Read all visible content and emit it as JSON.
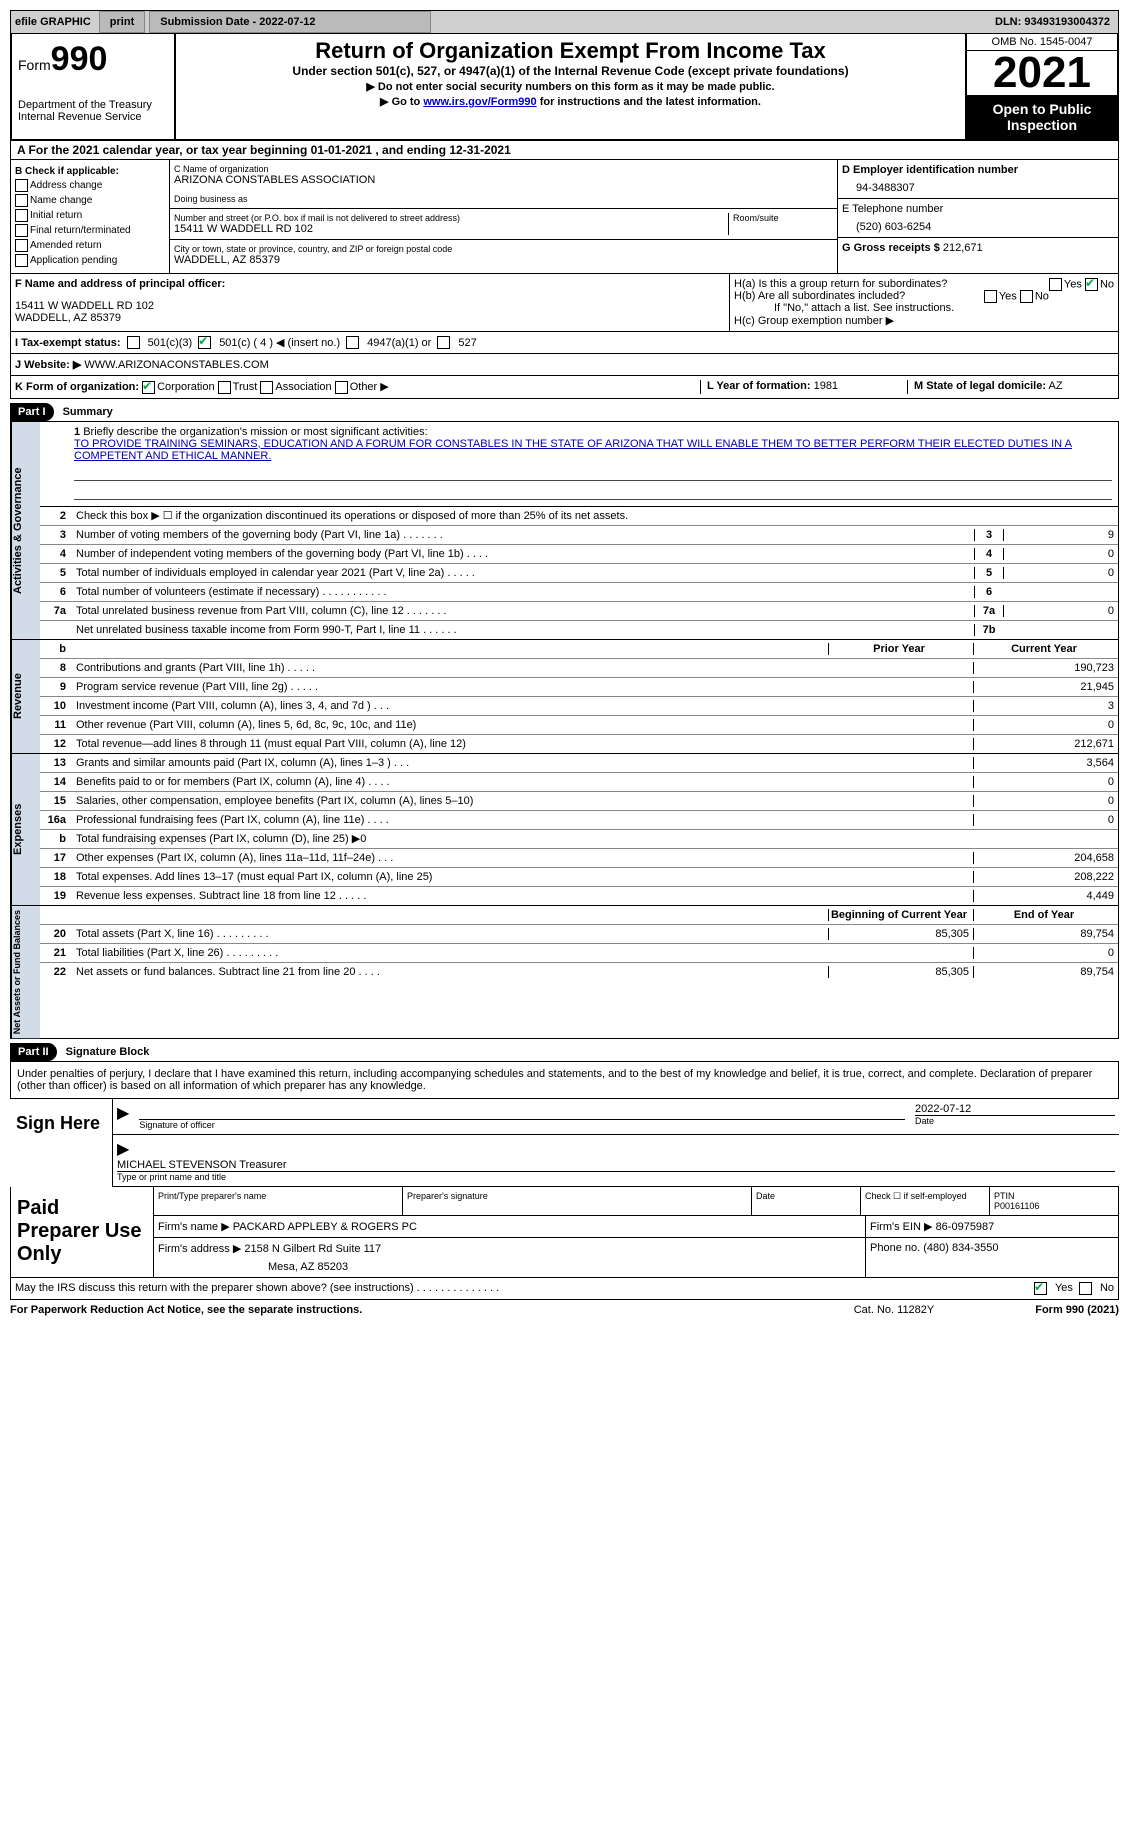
{
  "topbar": {
    "efile": "efile GRAPHIC",
    "print_btn": "print",
    "sub_label": "Submission Date - 2022-07-12",
    "dln": "DLN: 93493193004372"
  },
  "header": {
    "form_word": "Form",
    "form_num": "990",
    "dept": "Department of the Treasury Internal Revenue Service",
    "title": "Return of Organization Exempt From Income Tax",
    "sub": "Under section 501(c), 527, or 4947(a)(1) of the Internal Revenue Code (except private foundations)",
    "note1": "▶ Do not enter social security numbers on this form as it may be made public.",
    "note2a": "▶ Go to ",
    "note2link": "www.irs.gov/Form990",
    "note2b": " for instructions and the latest information.",
    "omb": "OMB No. 1545-0047",
    "year": "2021",
    "open": "Open to Public Inspection"
  },
  "row_a": "A For the 2021 calendar year, or tax year beginning 01-01-2021   , and ending 12-31-2021",
  "b": {
    "label": "B Check if applicable:",
    "items": [
      "Address change",
      "Name change",
      "Initial return",
      "Final return/terminated",
      "Amended return",
      "Application pending"
    ]
  },
  "c": {
    "label": "C Name of organization",
    "name": "ARIZONA CONSTABLES ASSOCIATION",
    "dba_label": "Doing business as",
    "street_label": "Number and street (or P.O. box if mail is not delivered to street address)",
    "street": "15411 W WADDELL RD 102",
    "room_label": "Room/suite",
    "city_label": "City or town, state or province, country, and ZIP or foreign postal code",
    "city": "WADDELL, AZ  85379"
  },
  "d": {
    "ein_label": "D Employer identification number",
    "ein": "94-3488307",
    "tel_label": "E Telephone number",
    "tel": "(520) 603-6254",
    "receipts_label": "G Gross receipts $",
    "receipts": "212,671"
  },
  "f": {
    "label": "F  Name and address of principal officer:",
    "addr1": "15411 W WADDELL RD 102",
    "addr2": "WADDELL, AZ  85379"
  },
  "h": {
    "ha": "H(a)  Is this a group return for subordinates?",
    "hb": "H(b)  Are all subordinates included?",
    "note": "If \"No,\" attach a list. See instructions.",
    "hc": "H(c)  Group exemption number ▶",
    "yes": "Yes",
    "no": "No"
  },
  "i_label": "I   Tax-exempt status:",
  "i_opts": [
    "501(c)(3)",
    "501(c) ( 4 ) ◀ (insert no.)",
    "4947(a)(1) or",
    "527"
  ],
  "j": {
    "label": "J   Website: ▶",
    "val": "WWW.ARIZONACONSTABLES.COM"
  },
  "k": {
    "label": "K Form of organization:",
    "opts": [
      "Corporation",
      "Trust",
      "Association",
      "Other ▶"
    ]
  },
  "l": {
    "label": "L Year of formation:",
    "val": "1981"
  },
  "m": {
    "label": "M State of legal domicile:",
    "val": "AZ"
  },
  "part1": {
    "tag": "Part I",
    "title": "Summary"
  },
  "summary": {
    "side1": "Activities & Governance",
    "side2": "Revenue",
    "side3": "Expenses",
    "side4": "Net Assets or Fund Balances",
    "l1": "Briefly describe the organization's mission or most significant activities:",
    "mission": "TO PROVIDE TRAINING SEMINARS, EDUCATION AND A FORUM FOR CONSTABLES IN THE STATE OF ARIZONA THAT WILL ENABLE THEM TO BETTER PERFORM THEIR ELECTED DUTIES IN A COMPETENT AND ETHICAL MANNER.",
    "l2": "Check this box ▶ ☐  if the organization discontinued its operations or disposed of more than 25% of its net assets.",
    "rows_a": [
      {
        "n": "3",
        "d": "Number of voting members of the governing body (Part VI, line 1a)   .     .     .     .     .     .     .",
        "b": "3",
        "v": "9"
      },
      {
        "n": "4",
        "d": "Number of independent voting members of the governing body (Part VI, line 1b)    .     .     .     .",
        "b": "4",
        "v": "0"
      },
      {
        "n": "5",
        "d": "Total number of individuals employed in calendar year 2021 (Part V, line 2a)   .     .     .     .     .",
        "b": "5",
        "v": "0"
      },
      {
        "n": "6",
        "d": "Total number of volunteers (estimate if necessary)    .     .     .     .     .     .     .     .     .     .     .",
        "b": "6",
        "v": ""
      },
      {
        "n": "7a",
        "d": "Total unrelated business revenue from Part VIII, column (C), line 12    .     .     .     .     .     .     .",
        "b": "7a",
        "v": "0"
      },
      {
        "n": "",
        "d": "Net unrelated business taxable income from Form 990-T, Part I, line 11   .     .     .     .     .     .",
        "b": "7b",
        "v": ""
      }
    ],
    "prior_hdr": "Prior Year",
    "curr_hdr": "Current Year",
    "rows_rev": [
      {
        "n": "8",
        "d": "Contributions and grants (Part VIII, line 1h)    .     .     .     .     .",
        "p": "",
        "c": "190,723"
      },
      {
        "n": "9",
        "d": "Program service revenue (Part VIII, line 2g)    .     .     .     .     .",
        "p": "",
        "c": "21,945"
      },
      {
        "n": "10",
        "d": "Investment income (Part VIII, column (A), lines 3, 4, and 7d )   .     .     .",
        "p": "",
        "c": "3"
      },
      {
        "n": "11",
        "d": "Other revenue (Part VIII, column (A), lines 5, 6d, 8c, 9c, 10c, and 11e)",
        "p": "",
        "c": "0"
      },
      {
        "n": "12",
        "d": "Total revenue—add lines 8 through 11 (must equal Part VIII, column (A), line 12)",
        "p": "",
        "c": "212,671"
      }
    ],
    "rows_exp": [
      {
        "n": "13",
        "d": "Grants and similar amounts paid (Part IX, column (A), lines 1–3 )   .     .     .",
        "p": "",
        "c": "3,564"
      },
      {
        "n": "14",
        "d": "Benefits paid to or for members (Part IX, column (A), line 4)   .     .     .     .",
        "p": "",
        "c": "0"
      },
      {
        "n": "15",
        "d": "Salaries, other compensation, employee benefits (Part IX, column (A), lines 5–10)",
        "p": "",
        "c": "0"
      },
      {
        "n": "16a",
        "d": "Professional fundraising fees (Part IX, column (A), line 11e)   .     .     .     .",
        "p": "",
        "c": "0"
      },
      {
        "n": "b",
        "d": "Total fundraising expenses (Part IX, column (D), line 25) ▶0",
        "p": "grey",
        "c": "grey"
      },
      {
        "n": "17",
        "d": "Other expenses (Part IX, column (A), lines 11a–11d, 11f–24e)   .     .     .",
        "p": "",
        "c": "204,658"
      },
      {
        "n": "18",
        "d": "Total expenses. Add lines 13–17 (must equal Part IX, column (A), line 25)",
        "p": "",
        "c": "208,222"
      },
      {
        "n": "19",
        "d": "Revenue less expenses. Subtract line 18 from line 12   .     .     .     .     .",
        "p": "",
        "c": "4,449"
      }
    ],
    "beg_hdr": "Beginning of Current Year",
    "end_hdr": "End of Year",
    "rows_net": [
      {
        "n": "20",
        "d": "Total assets (Part X, line 16)   .     .     .     .     .     .     .     .     .",
        "p": "85,305",
        "c": "89,754"
      },
      {
        "n": "21",
        "d": "Total liabilities (Part X, line 26)   .     .     .     .     .     .     .     .     .",
        "p": "",
        "c": "0"
      },
      {
        "n": "22",
        "d": "Net assets or fund balances. Subtract line 21 from line 20   .     .     .     .",
        "p": "85,305",
        "c": "89,754"
      }
    ]
  },
  "part2": {
    "tag": "Part II",
    "title": "Signature Block"
  },
  "sig": {
    "penalty": "Under penalties of perjury, I declare that I have examined this return, including accompanying schedules and statements, and to the best of my knowledge and belief, it is true, correct, and complete. Declaration of preparer (other than officer) is based on all information of which preparer has any knowledge.",
    "sign_here": "Sign Here",
    "sig_officer": "Signature of officer",
    "date_val": "2022-07-12",
    "date_lbl": "Date",
    "officer_name": "MICHAEL STEVENSON  Treasurer",
    "type_name": "Type or print name and title"
  },
  "paid": {
    "label": "Paid Preparer Use Only",
    "h_print": "Print/Type preparer's name",
    "h_sig": "Preparer's signature",
    "h_date": "Date",
    "h_check": "Check ☐ if self-employed",
    "h_ptin": "PTIN",
    "ptin": "P00161106",
    "firm_name_lbl": "Firm's name      ▶",
    "firm_name": "PACKARD APPLEBY & ROGERS PC",
    "firm_ein_lbl": "Firm's EIN ▶",
    "firm_ein": "86-0975987",
    "firm_addr_lbl": "Firm's address ▶",
    "firm_addr": "2158 N Gilbert Rd Suite 117",
    "firm_city": "Mesa, AZ  85203",
    "phone_lbl": "Phone no.",
    "phone": "(480) 834-3550",
    "discuss": "May the IRS discuss this return with the preparer shown above? (see instructions)    .     .     .     .     .     .     .     .     .     .     .     .     .     .",
    "yes": "Yes",
    "no": "No"
  },
  "footer": {
    "l": "For Paperwork Reduction Act Notice, see the separate instructions.",
    "m": "Cat. No. 11282Y",
    "r": "Form 990 (2021)"
  }
}
